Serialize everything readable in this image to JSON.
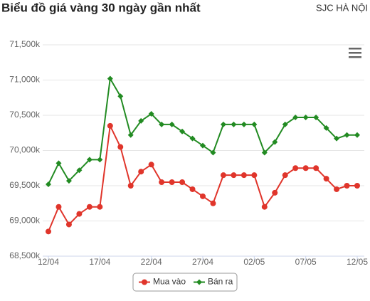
{
  "chart_data": {
    "type": "line",
    "title": "Biểu đồ giá vàng 30 ngày gần nhất",
    "subtitle": "SJC HÀ NỘI",
    "categories": [
      "12/04",
      null,
      null,
      null,
      null,
      "17/04",
      null,
      null,
      null,
      null,
      "22/04",
      null,
      null,
      null,
      null,
      "27/04",
      null,
      null,
      null,
      null,
      "02/05",
      null,
      null,
      null,
      null,
      "07/05",
      null,
      null,
      null,
      null,
      "12/05"
    ],
    "series": [
      {
        "name": "Mua vào",
        "color": "#e0352b",
        "values": [
          68850,
          69200,
          68950,
          69100,
          69200,
          69200,
          70350,
          70050,
          69500,
          69700,
          69800,
          69550,
          69550,
          69550,
          69450,
          69350,
          69250,
          69650,
          69650,
          69650,
          69650,
          69200,
          69400,
          69650,
          69750,
          69750,
          69750,
          69600,
          69450,
          69500,
          69500
        ]
      },
      {
        "name": "Bán ra",
        "color": "#228b22",
        "values": [
          69520,
          69820,
          69570,
          69720,
          69870,
          69870,
          71020,
          70770,
          70220,
          70420,
          70520,
          70370,
          70370,
          70270,
          70170,
          70070,
          69970,
          70370,
          70370,
          70370,
          70370,
          69970,
          70120,
          70370,
          70470,
          70470,
          70470,
          70320,
          70170,
          70220,
          70220
        ]
      }
    ],
    "ylim": [
      68500,
      71500
    ],
    "yticks": [
      {
        "value": 68500,
        "label": "68,500k"
      },
      {
        "value": 69000,
        "label": "69,000k"
      },
      {
        "value": 69500,
        "label": "69,500k"
      },
      {
        "value": 70000,
        "label": "70,000k"
      },
      {
        "value": 70500,
        "label": "70,500k"
      },
      {
        "value": 71000,
        "label": "71,000k"
      },
      {
        "value": 71500,
        "label": "71,500k"
      }
    ],
    "grid": true,
    "legend": "bottom"
  }
}
